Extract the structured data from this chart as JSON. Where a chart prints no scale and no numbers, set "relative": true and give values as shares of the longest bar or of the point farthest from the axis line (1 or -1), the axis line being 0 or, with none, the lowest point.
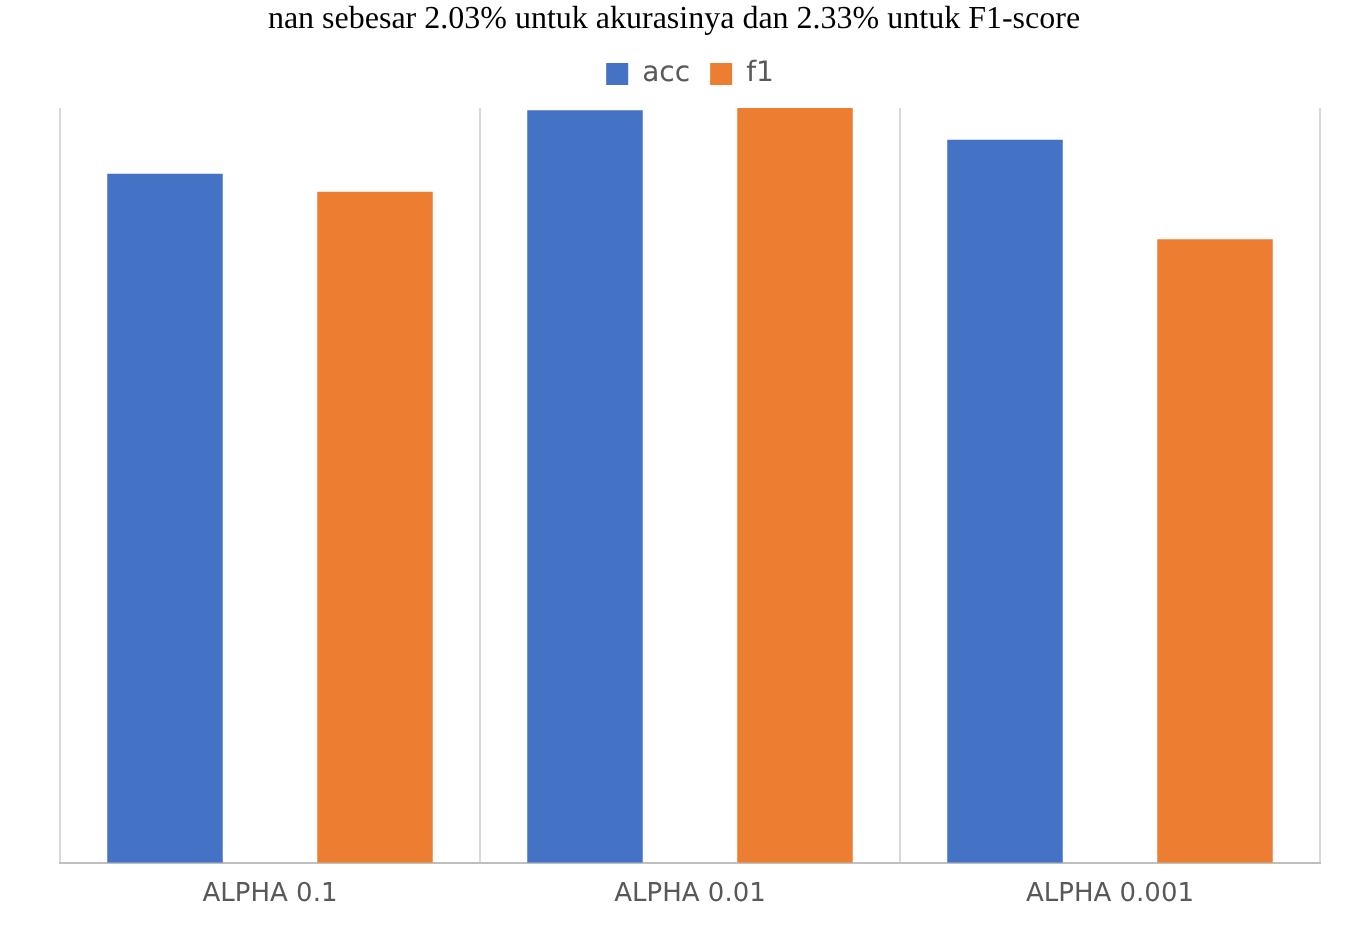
{
  "chart_data": {
    "type": "bar",
    "relative": true,
    "annotations": [
      "nan sebesar 2.03% untuk akurasinya dan 2.33% untuk F1-score"
    ],
    "categories": [
      "ALPHA 0.1",
      "ALPHA 0.01",
      "ALPHA 0.001"
    ],
    "series": [
      {
        "name": "acc",
        "color": "#4472c4",
        "values": [
          0.913,
          0.997,
          0.958
        ]
      },
      {
        "name": "f1",
        "color": "#ed7d31",
        "values": [
          0.889,
          1,
          0.826
        ]
      }
    ],
    "grid": "x",
    "legend": "top"
  }
}
